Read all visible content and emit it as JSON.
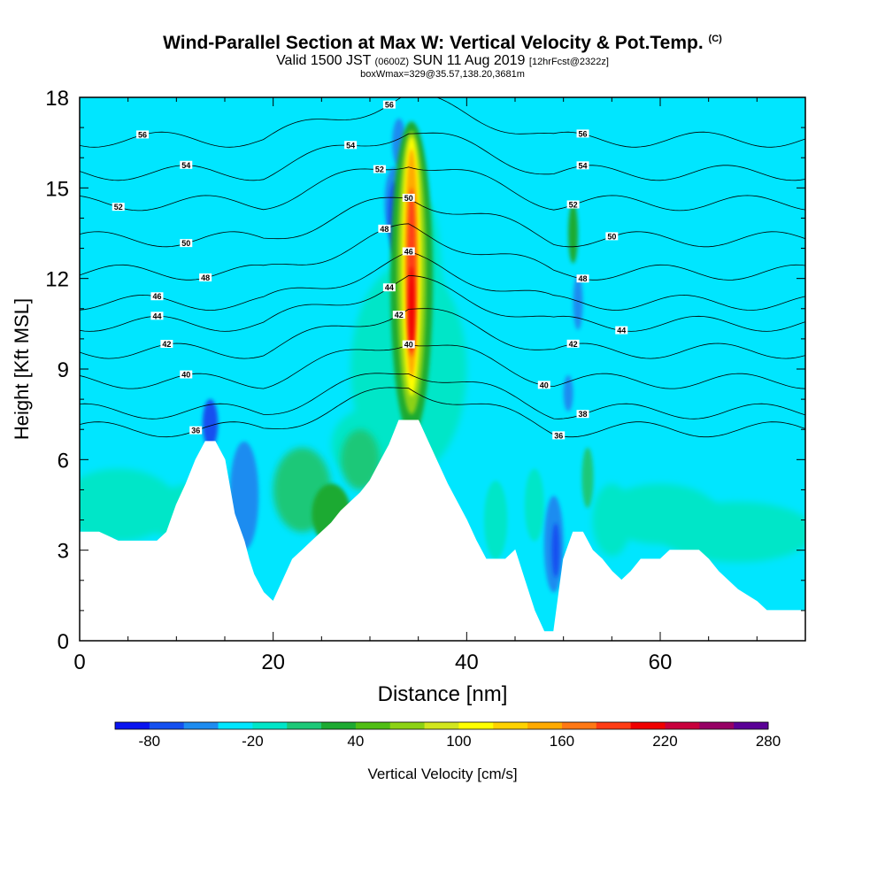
{
  "title": {
    "main": "Wind-Parallel Section at Max W: Vertical Velocity & Pot.Temp.",
    "copyright": "(C)",
    "valid_prefix": "Valid 1500 JST",
    "valid_utc": "(0600Z)",
    "valid_date": "SUN 11 Aug 2019",
    "forecast": "[12hrFcst@2322z]",
    "boxinfo": "boxWmax=329@35.57,138.20,3681m"
  },
  "colors": {
    "colorbar": [
      "#0a14f0",
      "#1450f0",
      "#1e8cf0",
      "#00e6ff",
      "#00e6c8",
      "#1ec878",
      "#1eaa32",
      "#50be14",
      "#8cd214",
      "#d2e61e",
      "#ffff00",
      "#ffd200",
      "#ffaa00",
      "#ff7814",
      "#ff3c14",
      "#f00000",
      "#c8003c",
      "#960064",
      "#5a0096"
    ],
    "terrain": "#ffffff",
    "isentrope": "#000000"
  },
  "chart_data": {
    "type": "heatmap",
    "xlabel": "Distance [nm]",
    "ylabel": "Height [Kft MSL]",
    "xlim": [
      0,
      75
    ],
    "ylim": [
      0,
      18
    ],
    "x_ticks": [
      0,
      20,
      40,
      60
    ],
    "y_ticks": [
      0,
      3,
      6,
      9,
      12,
      15,
      18
    ],
    "colorbar": {
      "label": "Vertical Velocity [cm/s]",
      "tick_labels": [
        "-80",
        "-20",
        "40",
        "100",
        "160",
        "220",
        "280"
      ],
      "min": -100,
      "step": 20
    },
    "terrain_kft": [
      [
        0,
        3.6
      ],
      [
        2,
        3.6
      ],
      [
        4,
        3.3
      ],
      [
        6,
        3.3
      ],
      [
        8,
        3.3
      ],
      [
        9,
        3.6
      ],
      [
        10,
        4.5
      ],
      [
        11,
        5.2
      ],
      [
        12,
        6.0
      ],
      [
        13,
        6.6
      ],
      [
        14,
        6.6
      ],
      [
        15,
        6.0
      ],
      [
        16,
        4.2
      ],
      [
        17,
        3.3
      ],
      [
        17.5,
        2.7
      ],
      [
        18,
        2.2
      ],
      [
        19,
        1.6
      ],
      [
        20,
        1.3
      ],
      [
        21,
        2.0
      ],
      [
        22,
        2.7
      ],
      [
        23,
        3.0
      ],
      [
        24,
        3.3
      ],
      [
        25,
        3.6
      ],
      [
        26,
        3.9
      ],
      [
        27,
        4.3
      ],
      [
        28,
        4.6
      ],
      [
        29,
        4.9
      ],
      [
        30,
        5.3
      ],
      [
        31,
        5.9
      ],
      [
        32,
        6.5
      ],
      [
        33,
        7.3
      ],
      [
        35,
        7.3
      ],
      [
        36,
        6.6
      ],
      [
        37,
        5.9
      ],
      [
        38,
        5.2
      ],
      [
        39,
        4.6
      ],
      [
        40,
        4.0
      ],
      [
        41,
        3.3
      ],
      [
        42,
        2.7
      ],
      [
        44,
        2.7
      ],
      [
        45,
        3.0
      ],
      [
        46,
        2.0
      ],
      [
        47,
        1.0
      ],
      [
        48,
        0.3
      ],
      [
        49,
        0.3
      ],
      [
        50,
        2.7
      ],
      [
        51,
        3.6
      ],
      [
        52,
        3.6
      ],
      [
        53,
        3.0
      ],
      [
        54,
        2.7
      ],
      [
        55,
        2.3
      ],
      [
        56,
        2.0
      ],
      [
        57,
        2.3
      ],
      [
        58,
        2.7
      ],
      [
        60,
        2.7
      ],
      [
        61,
        3.0
      ],
      [
        64,
        3.0
      ],
      [
        65,
        2.7
      ],
      [
        66,
        2.3
      ],
      [
        67,
        2.0
      ],
      [
        68,
        1.7
      ],
      [
        70,
        1.3
      ],
      [
        71,
        1.0
      ],
      [
        75,
        1.0
      ]
    ],
    "isentropes": [
      {
        "label": "36",
        "base": 7.0,
        "label_at": [
          12,
          49.5
        ]
      },
      {
        "label": "38",
        "base": 7.6,
        "label_at": [
          52
        ]
      },
      {
        "label": "40",
        "base": 8.6,
        "label_at": [
          11,
          34,
          48
        ]
      },
      {
        "label": "42",
        "base": 9.6,
        "label_at": [
          9,
          33,
          51
        ]
      },
      {
        "label": "44",
        "base": 10.5,
        "label_at": [
          8,
          32,
          56
        ]
      },
      {
        "label": "46",
        "base": 11.2,
        "label_at": [
          8,
          34
        ]
      },
      {
        "label": "48",
        "base": 12.2,
        "label_at": [
          13,
          31.5,
          52
        ]
      },
      {
        "label": "50",
        "base": 13.3,
        "label_at": [
          11,
          34,
          55
        ]
      },
      {
        "label": "52",
        "base": 14.5,
        "label_at": [
          4,
          31,
          51
        ]
      },
      {
        "label": "54",
        "base": 15.5,
        "label_at": [
          11,
          28,
          52
        ]
      },
      {
        "label": "56",
        "base": 16.6,
        "label_at": [
          6.5,
          32,
          52
        ]
      }
    ]
  }
}
